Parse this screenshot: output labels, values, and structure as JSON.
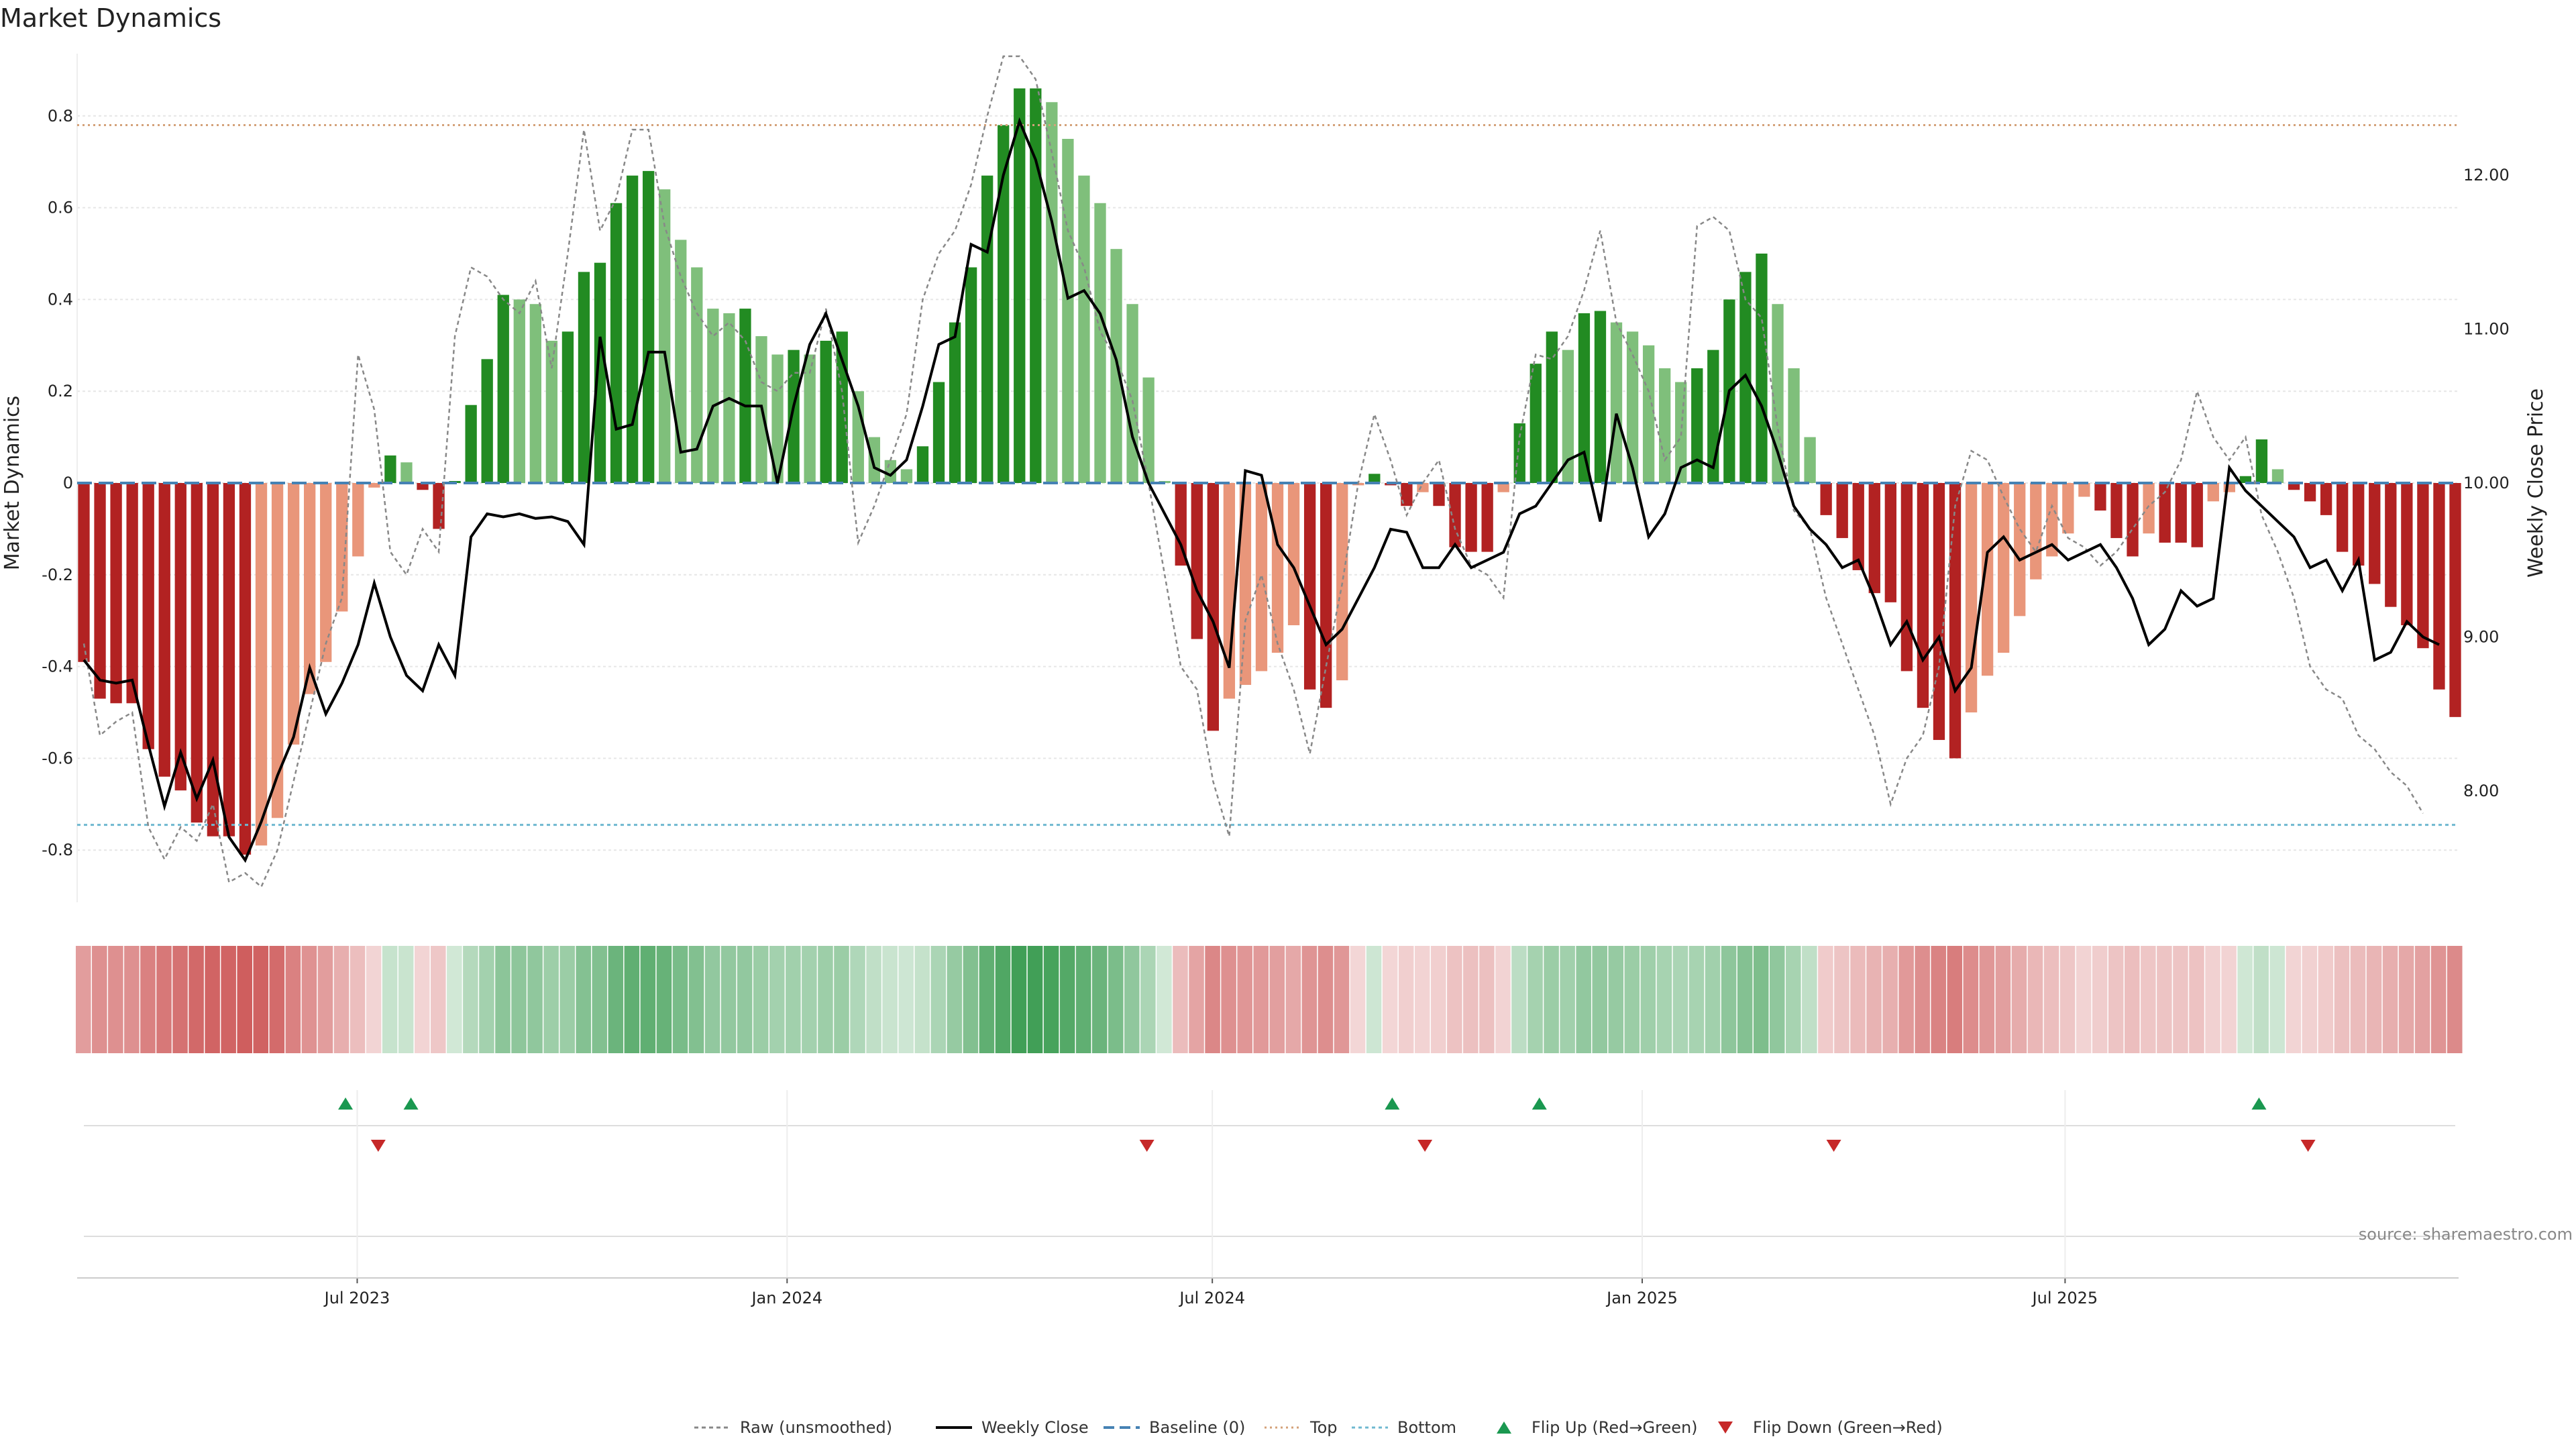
{
  "chart_data": {
    "type": "bar",
    "title": "Market Dynamics",
    "ylabel_left": "Market Dynamics",
    "ylabel_right": "Weekly Close Price",
    "xlabel": "",
    "ylim_left": [
      -0.93,
      0.93
    ],
    "ylim_right": [
      7.45,
      12.8
    ],
    "yticks_left": [
      "0.8",
      "0.6",
      "0.4",
      "0.2",
      "0",
      "-0.2",
      "-0.4",
      "-0.6",
      "-0.8"
    ],
    "yticks_left_values": [
      0.8,
      0.6,
      0.4,
      0.2,
      0,
      -0.2,
      -0.4,
      -0.6,
      -0.8
    ],
    "yticks_right": [
      "12.00",
      "11.00",
      "10.00",
      "9.00",
      "8.00"
    ],
    "yticks_right_values": [
      12,
      11,
      10,
      9,
      8
    ],
    "x_start": "2023-03-06",
    "x_end": "2025-12-15",
    "xticks": [
      {
        "label": "Jul 2023",
        "date": "2023-07-01"
      },
      {
        "label": "Jan 2024",
        "date": "2024-01-01"
      },
      {
        "label": "Jul 2024",
        "date": "2024-07-01"
      },
      {
        "label": "Jan 2025",
        "date": "2025-01-01"
      },
      {
        "label": "Jul 2025",
        "date": "2025-07-01"
      }
    ],
    "top_level": 0.78,
    "bottom_level": -0.745,
    "baseline": 0,
    "momentum": [
      -0.39,
      -0.47,
      -0.48,
      -0.48,
      -0.58,
      -0.64,
      -0.67,
      -0.74,
      -0.77,
      -0.77,
      -0.81,
      -0.79,
      -0.73,
      -0.57,
      -0.46,
      -0.39,
      -0.28,
      -0.16,
      -0.01,
      0.06,
      0.045,
      -0.015,
      -0.1,
      0.0,
      0.17,
      0.27,
      0.41,
      0.4,
      0.39,
      0.31,
      0.33,
      0.46,
      0.48,
      0.61,
      0.67,
      0.68,
      0.64,
      0.53,
      0.47,
      0.38,
      0.37,
      0.38,
      0.32,
      0.28,
      0.29,
      0.28,
      0.31,
      0.33,
      0.2,
      0.1,
      0.05,
      0.03,
      0.08,
      0.22,
      0.35,
      0.47,
      0.67,
      0.78,
      0.86,
      0.86,
      0.83,
      0.75,
      0.67,
      0.61,
      0.51,
      0.39,
      0.23,
      0.0,
      -0.18,
      -0.34,
      -0.54,
      -0.47,
      -0.44,
      -0.41,
      -0.37,
      -0.31,
      -0.45,
      -0.49,
      -0.43,
      -0.005,
      0.02,
      -0.005,
      -0.05,
      -0.02,
      -0.05,
      -0.14,
      -0.15,
      -0.15,
      -0.02,
      0.13,
      0.26,
      0.33,
      0.29,
      0.37,
      0.375,
      0.35,
      0.33,
      0.3,
      0.25,
      0.22,
      0.25,
      0.29,
      0.4,
      0.46,
      0.5,
      0.39,
      0.25,
      0.1,
      -0.07,
      -0.12,
      -0.19,
      -0.24,
      -0.26,
      -0.41,
      -0.49,
      -0.56,
      -0.6,
      -0.5,
      -0.42,
      -0.37,
      -0.29,
      -0.21,
      -0.16,
      -0.11,
      -0.03,
      -0.06,
      -0.12,
      -0.16,
      -0.11,
      -0.13,
      -0.13,
      -0.14,
      -0.04,
      -0.02,
      0.015,
      0.095,
      0.03,
      -0.015,
      -0.04,
      -0.07,
      -0.15,
      -0.18,
      -0.22,
      -0.27,
      -0.31,
      -0.36,
      -0.45,
      -0.51
    ],
    "raw": [
      -0.35,
      -0.55,
      -0.52,
      -0.5,
      -0.75,
      -0.82,
      -0.75,
      -0.78,
      -0.7,
      -0.87,
      -0.85,
      -0.88,
      -0.8,
      -0.65,
      -0.5,
      -0.35,
      -0.25,
      0.28,
      0.16,
      -0.15,
      -0.2,
      -0.1,
      -0.15,
      0.32,
      0.47,
      0.45,
      0.4,
      0.37,
      0.44,
      0.25,
      0.5,
      0.77,
      0.55,
      0.62,
      0.77,
      0.77,
      0.56,
      0.45,
      0.37,
      0.32,
      0.35,
      0.31,
      0.22,
      0.2,
      0.24,
      0.24,
      0.38,
      0.2,
      -0.13,
      -0.05,
      0.05,
      0.15,
      0.4,
      0.5,
      0.55,
      0.65,
      0.8,
      0.93,
      0.93,
      0.88,
      0.72,
      0.55,
      0.47,
      0.33,
      0.27,
      0.18,
      0.0,
      -0.2,
      -0.4,
      -0.45,
      -0.65,
      -0.77,
      -0.3,
      -0.2,
      -0.35,
      -0.45,
      -0.59,
      -0.4,
      -0.22,
      0.0,
      0.15,
      0.05,
      -0.07,
      0.0,
      0.05,
      -0.1,
      -0.18,
      -0.2,
      -0.25,
      0.1,
      0.28,
      0.27,
      0.32,
      0.42,
      0.55,
      0.35,
      0.28,
      0.2,
      0.05,
      0.1,
      0.56,
      0.58,
      0.55,
      0.4,
      0.36,
      0.12,
      -0.06,
      -0.1,
      -0.25,
      -0.35,
      -0.45,
      -0.55,
      -0.7,
      -0.6,
      -0.55,
      -0.4,
      -0.05,
      0.07,
      0.05,
      -0.03,
      -0.1,
      -0.15,
      -0.05,
      -0.12,
      -0.14,
      -0.18,
      -0.15,
      -0.1,
      -0.05,
      -0.02,
      0.05,
      0.2,
      0.1,
      0.05,
      0.1,
      -0.07,
      -0.15,
      -0.25,
      -0.4,
      -0.45,
      -0.47,
      -0.55,
      -0.58,
      -0.63,
      -0.66,
      -0.72
    ],
    "weekly_close": [
      8.85,
      8.72,
      8.7,
      8.72,
      8.3,
      7.9,
      8.25,
      7.95,
      8.2,
      7.7,
      7.55,
      7.8,
      8.1,
      8.35,
      8.8,
      8.5,
      8.7,
      8.95,
      9.35,
      9.0,
      8.75,
      8.65,
      8.95,
      8.75,
      9.65,
      9.8,
      9.78,
      9.8,
      9.77,
      9.78,
      9.75,
      9.6,
      10.95,
      10.35,
      10.38,
      10.85,
      10.85,
      10.2,
      10.22,
      10.5,
      10.55,
      10.5,
      10.5,
      10.0,
      10.5,
      10.9,
      11.1,
      10.8,
      10.5,
      10.1,
      10.05,
      10.15,
      10.5,
      10.9,
      10.95,
      11.55,
      11.5,
      12.0,
      12.35,
      12.1,
      11.7,
      11.2,
      11.25,
      11.1,
      10.8,
      10.3,
      10.0,
      9.8,
      9.6,
      9.3,
      9.1,
      8.8,
      10.08,
      10.05,
      9.6,
      9.45,
      9.2,
      8.95,
      9.05,
      9.25,
      9.45,
      9.7,
      9.68,
      9.45,
      9.45,
      9.6,
      9.45,
      9.5,
      9.55,
      9.8,
      9.85,
      10.0,
      10.15,
      10.2,
      9.75,
      10.45,
      10.1,
      9.65,
      9.8,
      10.1,
      10.15,
      10.1,
      10.6,
      10.7,
      10.5,
      10.2,
      9.85,
      9.7,
      9.6,
      9.45,
      9.5,
      9.25,
      8.95,
      9.1,
      8.85,
      9.0,
      8.65,
      8.8,
      9.55,
      9.65,
      9.5,
      9.55,
      9.6,
      9.5,
      9.55,
      9.6,
      9.45,
      9.25,
      8.95,
      9.05,
      9.3,
      9.2,
      9.25,
      10.1,
      9.95,
      9.85,
      9.75,
      9.65,
      9.45,
      9.5,
      9.3,
      9.5,
      8.85,
      8.9,
      9.1,
      9.0,
      8.95
    ],
    "flips_up": [
      "2023-06-26",
      "2023-07-24",
      "2024-09-16",
      "2024-11-18",
      "2025-09-22"
    ],
    "flips_down": [
      "2023-07-10",
      "2024-06-03",
      "2024-09-30",
      "2025-03-24",
      "2025-10-13"
    ],
    "legend_position": "bottom-center",
    "grid": true
  },
  "colors": {
    "strong_red": "#b22222",
    "weak_red": "#e9967a",
    "strong_green": "#228b22",
    "weak_green": "#7fbf7b",
    "price_line": "#000000",
    "raw_line": "#888888",
    "baseline": "#4682b4",
    "top_line": "#d4a27a",
    "bottom_line": "#6fb8d0",
    "flip_up": "#1a9850",
    "flip_down": "#c62828"
  },
  "legend": [
    {
      "key": "raw",
      "label": "Raw (unsmoothed)"
    },
    {
      "key": "close",
      "label": "Weekly Close"
    },
    {
      "key": "baseline",
      "label": "Baseline (0)"
    },
    {
      "key": "top",
      "label": "Top"
    },
    {
      "key": "bottom",
      "label": "Bottom"
    },
    {
      "key": "flip_up",
      "label": "Flip Up (Red→Green)"
    },
    {
      "key": "flip_down",
      "label": "Flip Down (Green→Red)"
    }
  ],
  "source_note": "source: sharemaestro.com"
}
